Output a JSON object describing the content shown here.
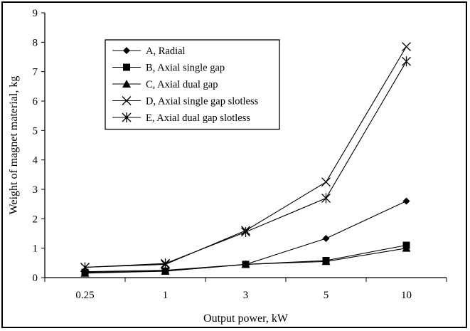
{
  "chart_data": {
    "type": "line",
    "title": "",
    "xlabel": "Output power, kW",
    "ylabel": "Weight of magnet material, kg",
    "categories": [
      "0.25",
      "1",
      "3",
      "5",
      "10"
    ],
    "ylim": [
      0,
      9
    ],
    "yticks": [
      "0",
      "1",
      "2",
      "3",
      "4",
      "5",
      "6",
      "7",
      "8",
      "9"
    ],
    "grid": false,
    "legend_position": "top-left",
    "series": [
      {
        "name": "A, Radial",
        "marker": "diamond",
        "values": [
          0.2,
          0.25,
          0.45,
          1.33,
          2.6
        ]
      },
      {
        "name": "B, Axial single gap",
        "marker": "square",
        "values": [
          0.18,
          0.22,
          0.45,
          0.58,
          1.1
        ]
      },
      {
        "name": "C, Axial dual gap",
        "marker": "triangle",
        "values": [
          0.15,
          0.22,
          0.45,
          0.55,
          1.0
        ]
      },
      {
        "name": "D, Axial single gap slotless",
        "marker": "x",
        "values": [
          0.35,
          0.45,
          1.6,
          3.25,
          7.85
        ]
      },
      {
        "name": "E, Axial dual gap slotless",
        "marker": "star",
        "values": [
          0.35,
          0.48,
          1.55,
          2.7,
          7.35
        ]
      }
    ]
  }
}
